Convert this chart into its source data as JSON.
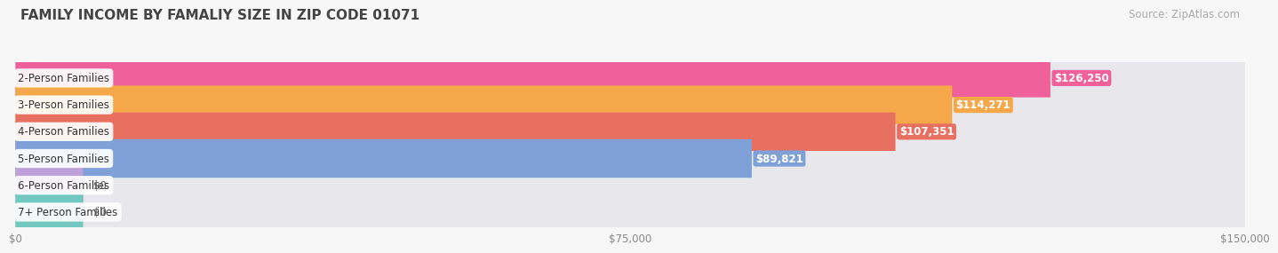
{
  "title": "FAMILY INCOME BY FAMALIY SIZE IN ZIP CODE 01071",
  "source": "Source: ZipAtlas.com",
  "categories": [
    "2-Person Families",
    "3-Person Families",
    "4-Person Families",
    "5-Person Families",
    "6-Person Families",
    "7+ Person Families"
  ],
  "values": [
    126250,
    114271,
    107351,
    89821,
    0,
    0
  ],
  "bar_colors": [
    "#f0609a",
    "#f5a84a",
    "#e87060",
    "#80a0d8",
    "#c0a0d8",
    "#70c8c0"
  ],
  "value_labels": [
    "$126,250",
    "$114,271",
    "$107,351",
    "$89,821",
    "$0",
    "$0"
  ],
  "xlim": [
    0,
    150000
  ],
  "xticks": [
    0,
    75000,
    150000
  ],
  "xticklabels": [
    "$0",
    "$75,000",
    "$150,000"
  ],
  "background_color": "#f7f7f7",
  "bar_bg_color": "#e8e8ec",
  "title_fontsize": 11,
  "source_fontsize": 8.5,
  "label_fontsize": 8.5,
  "value_fontsize": 8.5
}
